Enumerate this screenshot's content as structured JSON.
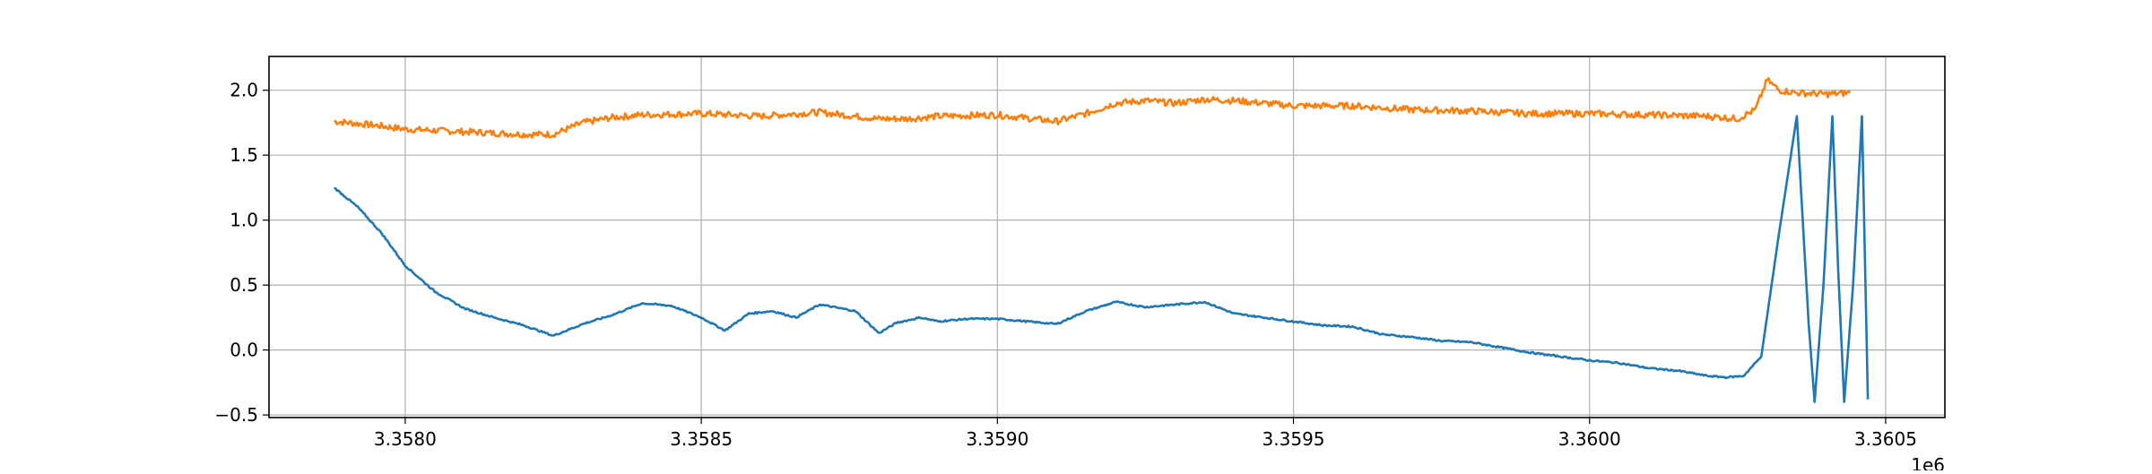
{
  "chart_data": {
    "type": "line",
    "title": "",
    "xlabel": "",
    "ylabel": "",
    "x_offset_label": "1e6",
    "xlim": [
      3357770,
      3360600
    ],
    "ylim": [
      -0.52,
      2.26
    ],
    "grid": true,
    "legend": "none",
    "x_ticks": [
      {
        "value": 3358000,
        "label": "3.3580"
      },
      {
        "value": 3358500,
        "label": "3.3585"
      },
      {
        "value": 3359000,
        "label": "3.3590"
      },
      {
        "value": 3359500,
        "label": "3.3595"
      },
      {
        "value": 3360000,
        "label": "3.3600"
      },
      {
        "value": 3360500,
        "label": "3.3605"
      }
    ],
    "y_ticks": [
      {
        "value": -0.5,
        "label": "−0.5"
      },
      {
        "value": 0.0,
        "label": "0.0"
      },
      {
        "value": 0.5,
        "label": "0.5"
      },
      {
        "value": 1.0,
        "label": "1.0"
      },
      {
        "value": 1.5,
        "label": "1.5"
      },
      {
        "value": 2.0,
        "label": "2.0"
      }
    ],
    "series": [
      {
        "color": "#ff7f0e",
        "x": [
          3357880,
          3357950,
          3358000,
          3358100,
          3358200,
          3358250,
          3358300,
          3358350,
          3358400,
          3358500,
          3358600,
          3358700,
          3358800,
          3358850,
          3358900,
          3359000,
          3359100,
          3359150,
          3359200,
          3359250,
          3359300,
          3359350,
          3359400,
          3359500,
          3359600,
          3359700,
          3359800,
          3359900,
          3360000,
          3360100,
          3360200,
          3360250,
          3360280,
          3360300,
          3360320,
          3360350,
          3360400,
          3360440
        ],
        "y": [
          1.76,
          1.73,
          1.7,
          1.68,
          1.66,
          1.66,
          1.75,
          1.79,
          1.81,
          1.82,
          1.8,
          1.83,
          1.78,
          1.78,
          1.8,
          1.81,
          1.76,
          1.82,
          1.9,
          1.92,
          1.9,
          1.93,
          1.92,
          1.88,
          1.88,
          1.85,
          1.84,
          1.82,
          1.82,
          1.81,
          1.8,
          1.78,
          1.85,
          2.08,
          2.0,
          1.98,
          1.97,
          1.98
        ]
      },
      {
        "color": "#1f77b4",
        "x": [
          3357880,
          3357920,
          3357960,
          3358000,
          3358050,
          3358100,
          3358150,
          3358200,
          3358225,
          3358250,
          3358300,
          3358350,
          3358400,
          3358450,
          3358500,
          3358540,
          3358580,
          3358620,
          3358660,
          3358700,
          3358760,
          3358800,
          3358830,
          3358870,
          3358900,
          3358950,
          3359000,
          3359050,
          3359100,
          3359150,
          3359200,
          3359250,
          3359300,
          3359350,
          3359400,
          3359450,
          3359500,
          3359550,
          3359600,
          3359650,
          3359700,
          3359750,
          3359800,
          3359850,
          3359900,
          3359950,
          3360000,
          3360050,
          3360100,
          3360150,
          3360200,
          3360230,
          3360260,
          3360290,
          3360320,
          3360350,
          3360370,
          3360380,
          3360395,
          3360410,
          3360420,
          3360430,
          3360445,
          3360460,
          3360470
        ],
        "y": [
          1.25,
          1.1,
          0.9,
          0.65,
          0.45,
          0.32,
          0.25,
          0.19,
          0.15,
          0.11,
          0.2,
          0.27,
          0.36,
          0.34,
          0.25,
          0.15,
          0.28,
          0.3,
          0.25,
          0.35,
          0.3,
          0.13,
          0.21,
          0.25,
          0.22,
          0.24,
          0.24,
          0.22,
          0.2,
          0.3,
          0.37,
          0.33,
          0.35,
          0.37,
          0.28,
          0.25,
          0.22,
          0.19,
          0.18,
          0.12,
          0.1,
          0.07,
          0.06,
          0.02,
          -0.02,
          -0.05,
          -0.08,
          -0.1,
          -0.14,
          -0.16,
          -0.2,
          -0.21,
          -0.2,
          -0.05,
          0.9,
          1.8,
          0.2,
          -0.4,
          0.5,
          1.8,
          0.6,
          -0.4,
          0.5,
          1.8,
          -0.38
        ]
      }
    ]
  }
}
